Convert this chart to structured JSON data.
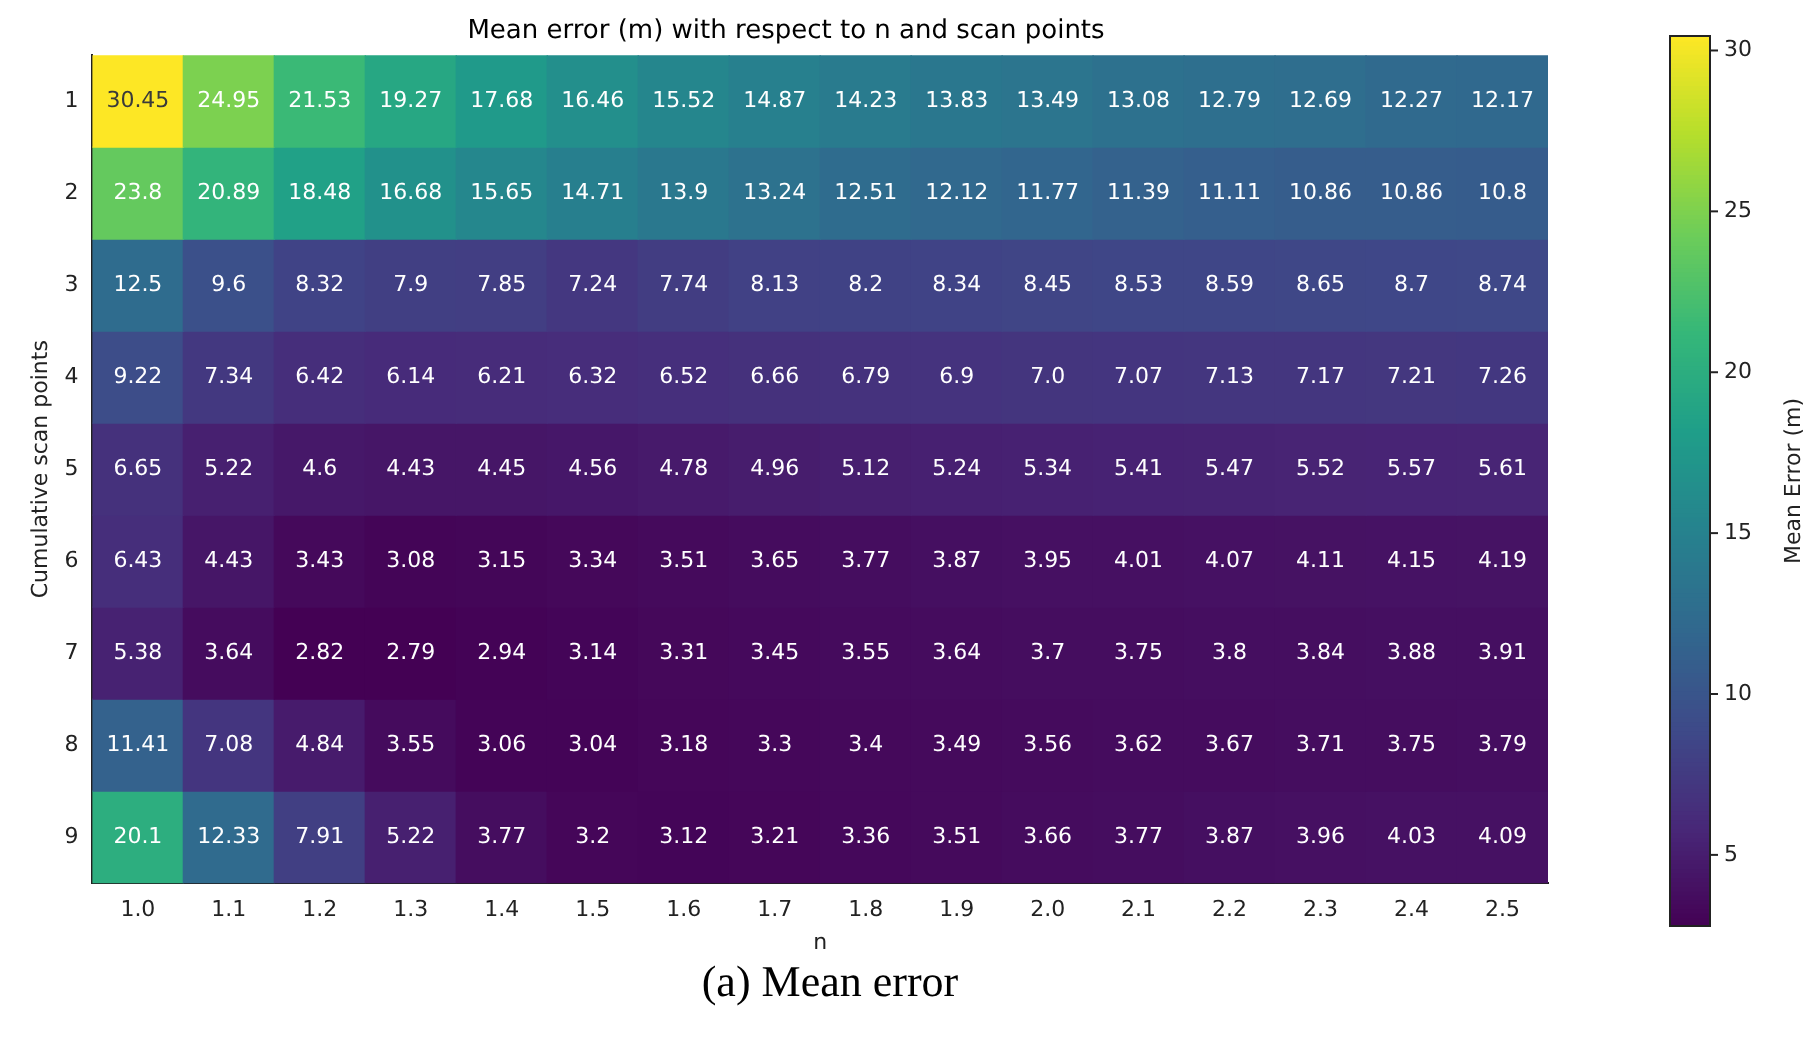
{
  "chart_data": {
    "type": "heatmap",
    "title": "Mean error (m) with respect to n and scan points",
    "xlabel": "n",
    "ylabel": "Cumulative scan points",
    "clabel": "Mean Error (m)",
    "categories": [
      "1.0",
      "1.1",
      "1.2",
      "1.3",
      "1.4",
      "1.5",
      "1.6",
      "1.7",
      "1.8",
      "1.9",
      "2.0",
      "2.1",
      "2.2",
      "2.3",
      "2.4",
      "2.5"
    ],
    "y_categories": [
      "1",
      "2",
      "3",
      "4",
      "5",
      "6",
      "7",
      "8",
      "9"
    ],
    "cells": [
      [
        30.45,
        24.95,
        21.53,
        19.27,
        17.68,
        16.46,
        15.52,
        14.87,
        14.23,
        13.83,
        13.49,
        13.08,
        12.79,
        12.69,
        12.27,
        12.17
      ],
      [
        23.8,
        20.89,
        18.48,
        16.68,
        15.65,
        14.71,
        13.9,
        13.24,
        12.51,
        12.12,
        11.77,
        11.39,
        11.11,
        10.86,
        10.86,
        10.8
      ],
      [
        12.5,
        9.6,
        8.32,
        7.9,
        7.85,
        7.24,
        7.74,
        8.13,
        8.2,
        8.34,
        8.45,
        8.53,
        8.59,
        8.65,
        8.7,
        8.74
      ],
      [
        9.22,
        7.34,
        6.42,
        6.14,
        6.21,
        6.32,
        6.52,
        6.66,
        6.79,
        6.9,
        7.0,
        7.07,
        7.13,
        7.17,
        7.21,
        7.26
      ],
      [
        6.65,
        5.22,
        4.6,
        4.43,
        4.45,
        4.56,
        4.78,
        4.96,
        5.12,
        5.24,
        5.34,
        5.41,
        5.47,
        5.52,
        5.57,
        5.61
      ],
      [
        6.43,
        4.43,
        3.43,
        3.08,
        3.15,
        3.34,
        3.51,
        3.65,
        3.77,
        3.87,
        3.95,
        4.01,
        4.07,
        4.11,
        4.15,
        4.19
      ],
      [
        5.38,
        3.64,
        2.82,
        2.79,
        2.94,
        3.14,
        3.31,
        3.45,
        3.55,
        3.64,
        3.7,
        3.75,
        3.8,
        3.84,
        3.88,
        3.91
      ],
      [
        11.41,
        7.08,
        4.84,
        3.55,
        3.06,
        3.04,
        3.18,
        3.3,
        3.4,
        3.49,
        3.56,
        3.62,
        3.67,
        3.71,
        3.75,
        3.79
      ],
      [
        20.1,
        12.33,
        7.91,
        5.22,
        3.77,
        3.2,
        3.12,
        3.21,
        3.36,
        3.51,
        3.66,
        3.77,
        3.87,
        3.96,
        4.03,
        4.09
      ]
    ],
    "cell_labels": [
      [
        "30.45",
        "24.95",
        "21.53",
        "19.27",
        "17.68",
        "16.46",
        "15.52",
        "14.87",
        "14.23",
        "13.83",
        "13.49",
        "13.08",
        "12.79",
        "12.69",
        "12.27",
        "12.17"
      ],
      [
        "23.8",
        "20.89",
        "18.48",
        "16.68",
        "15.65",
        "14.71",
        "13.9",
        "13.24",
        "12.51",
        "12.12",
        "11.77",
        "11.39",
        "11.11",
        "10.86",
        "10.86",
        "10.8"
      ],
      [
        "12.5",
        "9.6",
        "8.32",
        "7.9",
        "7.85",
        "7.24",
        "7.74",
        "8.13",
        "8.2",
        "8.34",
        "8.45",
        "8.53",
        "8.59",
        "8.65",
        "8.7",
        "8.74"
      ],
      [
        "9.22",
        "7.34",
        "6.42",
        "6.14",
        "6.21",
        "6.32",
        "6.52",
        "6.66",
        "6.79",
        "6.9",
        "7.0",
        "7.07",
        "7.13",
        "7.17",
        "7.21",
        "7.26"
      ],
      [
        "6.65",
        "5.22",
        "4.6",
        "4.43",
        "4.45",
        "4.56",
        "4.78",
        "4.96",
        "5.12",
        "5.24",
        "5.34",
        "5.41",
        "5.47",
        "5.52",
        "5.57",
        "5.61"
      ],
      [
        "6.43",
        "4.43",
        "3.43",
        "3.08",
        "3.15",
        "3.34",
        "3.51",
        "3.65",
        "3.77",
        "3.87",
        "3.95",
        "4.01",
        "4.07",
        "4.11",
        "4.15",
        "4.19"
      ],
      [
        "5.38",
        "3.64",
        "2.82",
        "2.79",
        "2.94",
        "3.14",
        "3.31",
        "3.45",
        "3.55",
        "3.64",
        "3.7",
        "3.75",
        "3.8",
        "3.84",
        "3.88",
        "3.91"
      ],
      [
        "11.41",
        "7.08",
        "4.84",
        "3.55",
        "3.06",
        "3.04",
        "3.18",
        "3.3",
        "3.4",
        "3.49",
        "3.56",
        "3.62",
        "3.67",
        "3.71",
        "3.75",
        "3.79"
      ],
      [
        "20.1",
        "12.33",
        "7.91",
        "5.22",
        "3.77",
        "3.2",
        "3.12",
        "3.21",
        "3.36",
        "3.51",
        "3.66",
        "3.77",
        "3.87",
        "3.96",
        "4.03",
        "4.09"
      ]
    ],
    "data_labels": true,
    "clim": [
      2.79,
      30.45
    ],
    "cticks": [
      5,
      10,
      15,
      20,
      25,
      30
    ],
    "annotations": [
      "(a) Mean error"
    ]
  }
}
